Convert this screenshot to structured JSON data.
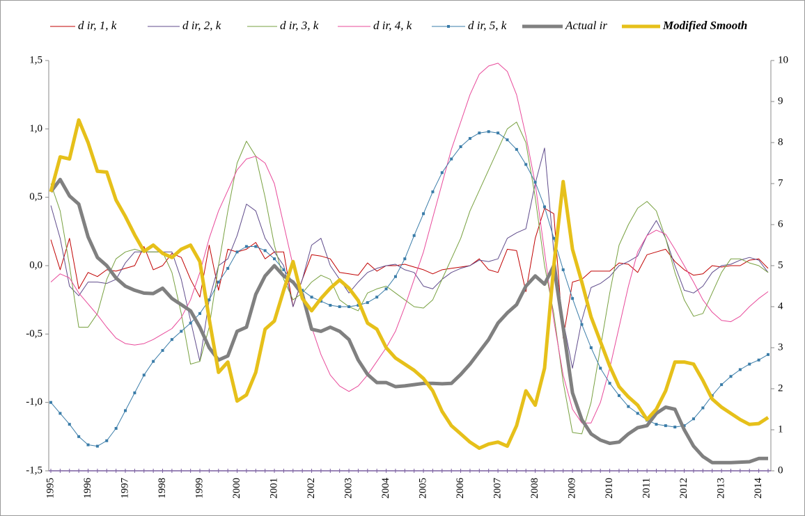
{
  "chart_data": {
    "type": "line",
    "categories": [
      "1995",
      null,
      null,
      null,
      "1996",
      null,
      null,
      null,
      "1997",
      null,
      null,
      null,
      "1998",
      null,
      null,
      null,
      "1999",
      null,
      null,
      null,
      "2000",
      null,
      null,
      null,
      "2001",
      null,
      null,
      null,
      "2002",
      null,
      null,
      null,
      "2003",
      null,
      null,
      null,
      "2004",
      null,
      null,
      null,
      "2005",
      null,
      null,
      null,
      "2006",
      null,
      null,
      null,
      "2007",
      null,
      null,
      null,
      "2008",
      null,
      null,
      null,
      "2009",
      null,
      null,
      null,
      "2010",
      null,
      null,
      null,
      "2011",
      null,
      null,
      null,
      "2012",
      null,
      null,
      null,
      "2013",
      null,
      null,
      null,
      "2014",
      null
    ],
    "ylim": [
      -1.5,
      1.5
    ],
    "yticks": [
      {
        "value": -1.5,
        "label": "-1,5"
      },
      {
        "value": -1.0,
        "label": "-1,0"
      },
      {
        "value": -0.5,
        "label": "-0,5"
      },
      {
        "value": 0.0,
        "label": "0,0"
      },
      {
        "value": 0.5,
        "label": "0,5"
      },
      {
        "value": 1.0,
        "label": "1,0"
      },
      {
        "value": 1.5,
        "label": "1,5"
      }
    ],
    "y2lim": [
      0,
      10
    ],
    "y2ticks": [
      0,
      1,
      2,
      3,
      4,
      5,
      6,
      7,
      8,
      9,
      10
    ],
    "legend": "top",
    "series": [
      {
        "name": "d ir, 1, k",
        "color": "#c00000",
        "width": 1,
        "values": [
          0.19,
          -0.03,
          0.2,
          -0.17,
          -0.05,
          -0.08,
          -0.03,
          -0.04,
          -0.02,
          0.0,
          0.14,
          -0.03,
          0.0,
          0.09,
          0.06,
          -0.1,
          -0.23,
          0.15,
          -0.18,
          0.12,
          0.1,
          0.12,
          0.17,
          0.05,
          0.1,
          0.1,
          -0.3,
          -0.1,
          0.08,
          0.07,
          0.05,
          -0.05,
          -0.06,
          -0.07,
          0.02,
          -0.04,
          0.0,
          0.0,
          0.01,
          -0.01,
          -0.03,
          -0.06,
          -0.03,
          -0.02,
          -0.01,
          0.0,
          0.05,
          -0.03,
          -0.05,
          0.12,
          0.11,
          -0.19,
          0.2,
          0.42,
          0.38,
          -0.53,
          -0.12,
          -0.1,
          -0.04,
          -0.04,
          -0.04,
          0.02,
          0.01,
          -0.05,
          0.08,
          0.1,
          0.12,
          0.03,
          -0.03,
          -0.07,
          -0.06,
          0.0,
          -0.01,
          0.0,
          0.0,
          0.04,
          0.05,
          -0.02
        ]
      },
      {
        "name": "d ir, 2, k",
        "color": "#5f4b8b",
        "width": 1,
        "values": [
          0.44,
          0.2,
          -0.15,
          -0.22,
          -0.12,
          -0.12,
          -0.13,
          -0.1,
          0.02,
          0.1,
          0.1,
          0.1,
          0.1,
          0.1,
          -0.1,
          -0.4,
          -0.7,
          -0.25,
          0.0,
          0.05,
          0.22,
          0.45,
          0.4,
          0.2,
          0.1,
          0.0,
          -0.3,
          -0.1,
          0.15,
          0.2,
          0.0,
          -0.1,
          -0.2,
          -0.12,
          -0.05,
          -0.02,
          0.0,
          0.01,
          -0.03,
          -0.05,
          -0.15,
          -0.17,
          -0.1,
          -0.05,
          -0.02,
          0.0,
          0.04,
          0.03,
          0.05,
          0.2,
          0.24,
          0.27,
          0.6,
          0.86,
          0.1,
          -0.4,
          -0.75,
          -0.4,
          -0.16,
          -0.13,
          -0.08,
          0.0,
          0.03,
          0.07,
          0.22,
          0.33,
          0.2,
          0.0,
          -0.18,
          -0.2,
          -0.15,
          -0.05,
          0.0,
          0.01,
          0.04,
          0.06,
          0.04,
          -0.05
        ]
      },
      {
        "name": "d ir, 3, k",
        "color": "#77a03f",
        "width": 1,
        "values": [
          0.6,
          0.4,
          0.0,
          -0.45,
          -0.45,
          -0.35,
          -0.1,
          0.05,
          0.1,
          0.12,
          0.1,
          0.1,
          0.1,
          -0.05,
          -0.35,
          -0.72,
          -0.7,
          -0.45,
          0.0,
          0.4,
          0.75,
          0.91,
          0.8,
          0.5,
          0.15,
          -0.1,
          -0.25,
          -0.2,
          -0.12,
          -0.07,
          -0.1,
          -0.25,
          -0.3,
          -0.33,
          -0.2,
          -0.17,
          -0.15,
          -0.2,
          -0.25,
          -0.3,
          -0.31,
          -0.25,
          -0.1,
          0.05,
          0.2,
          0.4,
          0.55,
          0.7,
          0.85,
          1.0,
          1.05,
          0.9,
          0.5,
          0.0,
          -0.35,
          -0.85,
          -1.22,
          -1.23,
          -1.0,
          -0.6,
          -0.2,
          0.15,
          0.3,
          0.42,
          0.47,
          0.4,
          0.2,
          -0.05,
          -0.25,
          -0.37,
          -0.35,
          -0.2,
          -0.05,
          0.05,
          0.05,
          0.02,
          0.0,
          -0.05
        ]
      },
      {
        "name": "d ir, 4, k",
        "color": "#e8499a",
        "width": 1,
        "values": [
          -0.12,
          -0.06,
          -0.09,
          -0.2,
          -0.28,
          -0.36,
          -0.45,
          -0.53,
          -0.57,
          -0.58,
          -0.57,
          -0.54,
          -0.5,
          -0.46,
          -0.38,
          -0.25,
          -0.05,
          0.2,
          0.4,
          0.55,
          0.7,
          0.78,
          0.8,
          0.75,
          0.6,
          0.3,
          0.0,
          -0.2,
          -0.45,
          -0.65,
          -0.8,
          -0.88,
          -0.92,
          -0.88,
          -0.8,
          -0.7,
          -0.6,
          -0.48,
          -0.3,
          -0.1,
          0.1,
          0.35,
          0.6,
          0.85,
          1.05,
          1.25,
          1.4,
          1.46,
          1.48,
          1.42,
          1.25,
          0.95,
          0.6,
          0.1,
          -0.4,
          -0.8,
          -1.05,
          -1.15,
          -1.15,
          -1.0,
          -0.75,
          -0.45,
          -0.15,
          0.1,
          0.22,
          0.26,
          0.23,
          0.12,
          0.0,
          -0.12,
          -0.25,
          -0.34,
          -0.4,
          -0.41,
          -0.37,
          -0.3,
          -0.24,
          -0.19
        ]
      },
      {
        "name": "d ir, 5, k",
        "color": "#3a7ca8",
        "width": 1,
        "markers": true,
        "values": [
          -1.0,
          -1.08,
          -1.16,
          -1.25,
          -1.31,
          -1.32,
          -1.28,
          -1.19,
          -1.06,
          -0.93,
          -0.8,
          -0.7,
          -0.62,
          -0.54,
          -0.48,
          -0.42,
          -0.35,
          -0.25,
          -0.12,
          -0.02,
          0.1,
          0.14,
          0.14,
          0.11,
          0.05,
          -0.03,
          -0.12,
          -0.18,
          -0.23,
          -0.26,
          -0.29,
          -0.3,
          -0.3,
          -0.29,
          -0.27,
          -0.23,
          -0.17,
          -0.08,
          0.05,
          0.22,
          0.38,
          0.54,
          0.68,
          0.78,
          0.87,
          0.93,
          0.97,
          0.98,
          0.97,
          0.92,
          0.85,
          0.74,
          0.61,
          0.43,
          0.2,
          -0.03,
          -0.24,
          -0.43,
          -0.6,
          -0.75,
          -0.86,
          -0.95,
          -1.03,
          -1.08,
          -1.13,
          -1.16,
          -1.17,
          -1.18,
          -1.17,
          -1.12,
          -1.04,
          -0.95,
          -0.87,
          -0.81,
          -0.76,
          -0.72,
          -0.69,
          -0.65
        ]
      },
      {
        "name": "Actual ir",
        "color": "#808080",
        "width": 5,
        "axis": "y2",
        "values": [
          6.8,
          7.1,
          6.7,
          6.5,
          5.7,
          5.2,
          5.0,
          4.7,
          4.5,
          4.4,
          4.33,
          4.32,
          4.45,
          4.2,
          4.05,
          3.9,
          3.5,
          3.0,
          2.7,
          2.8,
          3.4,
          3.5,
          4.3,
          4.75,
          5.0,
          4.75,
          4.6,
          4.3,
          3.45,
          3.4,
          3.5,
          3.4,
          3.2,
          2.7,
          2.35,
          2.15,
          2.15,
          2.05,
          2.07,
          2.1,
          2.13,
          2.13,
          2.12,
          2.13,
          2.35,
          2.6,
          2.9,
          3.2,
          3.6,
          3.85,
          4.05,
          4.5,
          4.75,
          4.55,
          5.0,
          3.5,
          1.9,
          1.25,
          0.9,
          0.75,
          0.67,
          0.7,
          0.9,
          1.05,
          1.1,
          1.4,
          1.55,
          1.5,
          1.0,
          0.6,
          0.35,
          0.2,
          0.2,
          0.2,
          0.21,
          0.22,
          0.3,
          0.3
        ]
      },
      {
        "name": "Modified Smooth",
        "color": "#e6c01a",
        "width": 5,
        "axis": "y2",
        "bold": true,
        "values": [
          6.8,
          7.65,
          7.6,
          8.55,
          8.0,
          7.3,
          7.28,
          6.6,
          6.2,
          5.75,
          5.35,
          5.5,
          5.3,
          5.2,
          5.4,
          5.5,
          5.1,
          3.7,
          2.4,
          2.65,
          1.7,
          1.85,
          2.4,
          3.45,
          3.65,
          4.4,
          5.1,
          4.2,
          3.9,
          4.2,
          4.45,
          4.65,
          4.45,
          4.15,
          3.6,
          3.45,
          3.0,
          2.75,
          2.6,
          2.45,
          2.25,
          1.95,
          1.45,
          1.1,
          0.9,
          0.7,
          0.55,
          0.65,
          0.7,
          0.6,
          1.1,
          1.95,
          1.6,
          2.5,
          5.0,
          7.05,
          5.4,
          4.6,
          3.75,
          3.15,
          2.55,
          2.05,
          1.8,
          1.6,
          1.25,
          1.5,
          1.95,
          2.65,
          2.65,
          2.6,
          2.2,
          1.75,
          1.55,
          1.4,
          1.25,
          1.13,
          1.15,
          1.3
        ]
      }
    ]
  }
}
